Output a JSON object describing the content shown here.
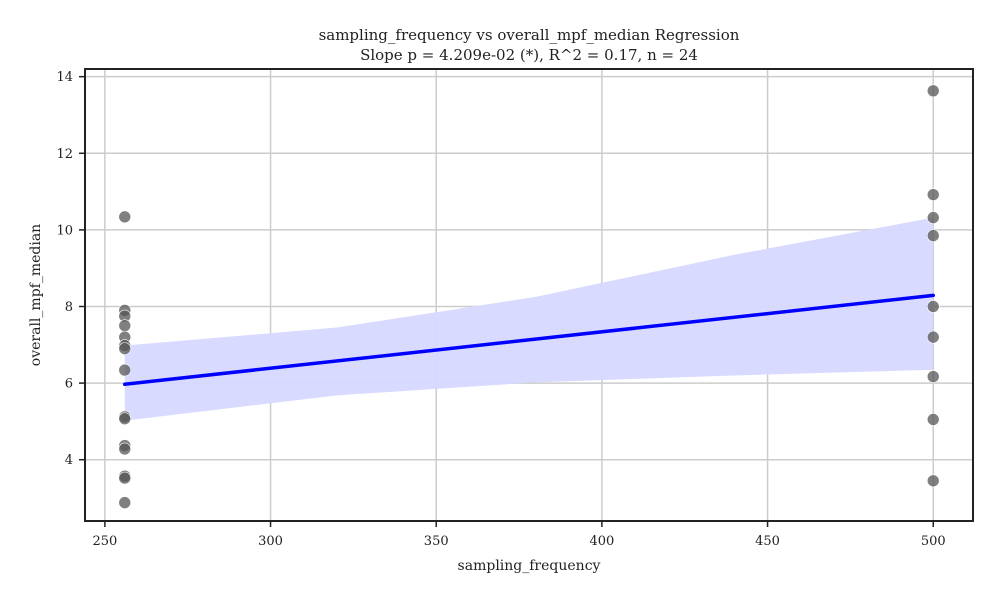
{
  "chart_data": {
    "type": "scatter",
    "title": "sampling_frequency vs overall_mpf_median Regression",
    "subtitle": "Slope p = 4.209e-02 (*), R^2 = 0.17, n = 24",
    "xlabel": "sampling_frequency",
    "ylabel": "overall_mpf_median",
    "xlim": [
      244,
      512
    ],
    "ylim": [
      2.4,
      14.2
    ],
    "xticks": [
      250,
      300,
      350,
      400,
      450,
      500
    ],
    "yticks": [
      4,
      6,
      8,
      10,
      12,
      14
    ],
    "grid": true,
    "points": [
      {
        "x": 256,
        "y": 10.34
      },
      {
        "x": 256,
        "y": 7.9
      },
      {
        "x": 256,
        "y": 7.75
      },
      {
        "x": 256,
        "y": 7.5
      },
      {
        "x": 256,
        "y": 7.2
      },
      {
        "x": 256,
        "y": 6.98
      },
      {
        "x": 256,
        "y": 6.9
      },
      {
        "x": 256,
        "y": 6.34
      },
      {
        "x": 256,
        "y": 5.12
      },
      {
        "x": 256,
        "y": 5.07
      },
      {
        "x": 256,
        "y": 4.37
      },
      {
        "x": 256,
        "y": 4.28
      },
      {
        "x": 256,
        "y": 3.57
      },
      {
        "x": 256,
        "y": 3.52
      },
      {
        "x": 256,
        "y": 2.88
      },
      {
        "x": 500,
        "y": 13.63
      },
      {
        "x": 500,
        "y": 10.92
      },
      {
        "x": 500,
        "y": 10.32
      },
      {
        "x": 500,
        "y": 9.85
      },
      {
        "x": 500,
        "y": 8.0
      },
      {
        "x": 500,
        "y": 7.2
      },
      {
        "x": 500,
        "y": 6.17
      },
      {
        "x": 500,
        "y": 5.05
      },
      {
        "x": 500,
        "y": 3.45
      }
    ],
    "regression": {
      "line": [
        {
          "x": 256,
          "y": 5.97
        },
        {
          "x": 500,
          "y": 8.29
        }
      ],
      "ci_band": [
        {
          "x": 256,
          "lower": 5.02,
          "upper": 6.98
        },
        {
          "x": 320,
          "lower": 5.68,
          "upper": 7.45
        },
        {
          "x": 380,
          "lower": 6.02,
          "upper": 8.25
        },
        {
          "x": 440,
          "lower": 6.2,
          "upper": 9.35
        },
        {
          "x": 500,
          "lower": 6.35,
          "upper": 10.32
        }
      ]
    },
    "colors": {
      "points": "#555555",
      "line": "#0000ff",
      "band": "#d6d8ff",
      "grid": "#cccccc",
      "axes": "#222222"
    }
  }
}
